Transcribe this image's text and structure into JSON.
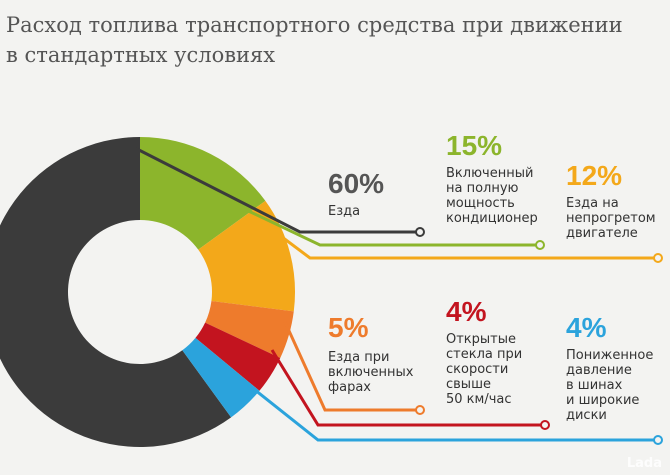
{
  "chart_data": {
    "type": "donut",
    "title": "Расход топлива транспортного средства при движении\nв стандартных условиях",
    "categories": [
      "Езда",
      "Включенный\nна полную\nмощность\nкондиционер",
      "Езда на\nнепрогретом\nдвигателе",
      "Езда при\nвключенных\nфарах",
      "Открытые\nстекла при\nскорости\nсвыше\n50 км/час",
      "Пониженное\nдавление\nв шинах\nи широкие\nдиски"
    ],
    "values": [
      60,
      15,
      12,
      5,
      4,
      4
    ],
    "value_labels": [
      "60%",
      "15%",
      "12%",
      "5%",
      "4%",
      "4%"
    ],
    "colors": [
      "#3b3b3b",
      "#8cb52c",
      "#f3a81a",
      "#ee7b2c",
      "#c3141f",
      "#2ba3dc"
    ]
  },
  "watermark": "Lada"
}
